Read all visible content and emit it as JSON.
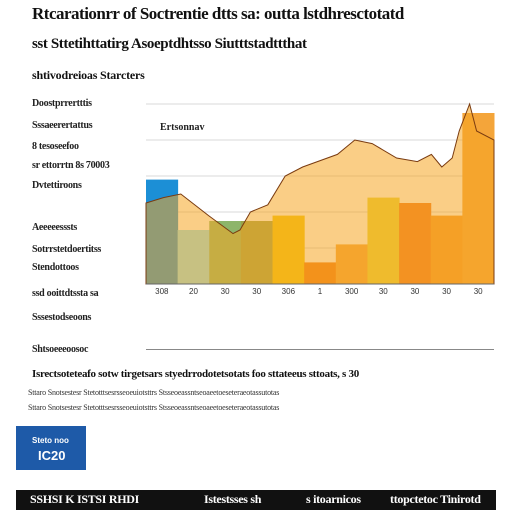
{
  "header": {
    "title_line1": "Rtcarationrr of Soctrentie dtts sa: outta lstdhresctotatd",
    "title_line2": "sst Sttetihttatirg Asoeptdhtsso Siutttstadttthat",
    "title_line3": "shtivodreioas Starcters"
  },
  "sidebar": {
    "items": [
      "Doostprrertttis",
      "Sssaeerertattus",
      "8 tesoseefoo",
      "sr ettorrtn 8s 70003",
      "Dvtettiroons",
      "Aeeeeesssts",
      "Sotrrstetdoertitss",
      "Stendottoos",
      "ssd ooittdtssta sa",
      "Sssestodseoons",
      "Shtsoeeeoosoc"
    ]
  },
  "chart_data": {
    "type": "area",
    "inner_label": "Ertsonnav",
    "x_tick_labels": [
      "308",
      "20",
      "30",
      "30",
      "306",
      "1",
      "300",
      "30",
      "30",
      "30",
      "30"
    ],
    "ylim": [
      0,
      100
    ],
    "grid": true,
    "bars": [
      {
        "value": 58,
        "color": "#1c8fd6"
      },
      {
        "value": 30,
        "color": "#8ee3f5"
      },
      {
        "value": 35,
        "color": "#8db56a"
      },
      {
        "value": 35,
        "color": "#9ba34a"
      },
      {
        "value": 38,
        "color": "#f2c80f"
      },
      {
        "value": 12,
        "color": "#f07a12"
      },
      {
        "value": 22,
        "color": "#f4a53a"
      },
      {
        "value": 48,
        "color": "#e7d43a"
      },
      {
        "value": 45,
        "color": "#ef7a22"
      },
      {
        "value": 38,
        "color": "#f39a2a"
      },
      {
        "value": 95,
        "color": "#f4a53a"
      }
    ],
    "area": {
      "color": "#f5a623",
      "x": [
        0,
        5,
        10,
        18,
        25,
        27,
        30,
        35,
        40,
        45,
        55,
        60,
        65,
        72,
        78,
        82,
        85,
        88,
        90,
        93,
        95,
        100
      ],
      "y": [
        45,
        48,
        50,
        38,
        28,
        30,
        40,
        44,
        60,
        65,
        72,
        80,
        78,
        70,
        68,
        72,
        65,
        70,
        85,
        100,
        85,
        80
      ]
    }
  },
  "notes": {
    "line1": "Isrectsoteteafo sotw  tirgetsars styedrrodotetsotats foo  sttateeus  sttoats, s 30",
    "line2": "Sttaro  Snotsestesr  Stetotttsesrsseoeuiotsttrs  Stsseoeassntseoaeetoeseteraeotassutotas"
  },
  "logo": {
    "line1": "Steto noo",
    "line2": "IC20"
  },
  "footer": {
    "segment1": "SSHSI  K ISTSI RHDI",
    "segment2": "Istestsses sh",
    "segment3": "s itoarnicos",
    "segment4": "ttopctetoc Tinirotd"
  }
}
